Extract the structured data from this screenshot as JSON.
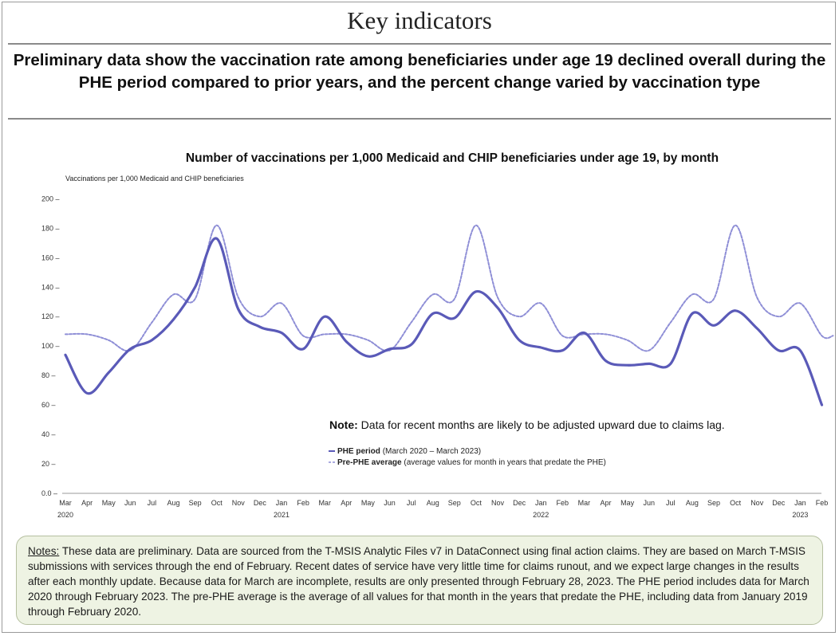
{
  "slide": {
    "title": "Key indicators",
    "headline": "Preliminary data show the vaccination rate among beneficiaries under age 19 declined overall during the PHE period compared to prior years, and the percent change varied by vaccination type"
  },
  "chart_data": {
    "type": "line",
    "title": "Number of vaccinations per 1,000 Medicaid and CHIP beneficiaries under age 19, by month",
    "ylabel": "Vaccinations per 1,000 Medicaid and CHIP beneficiaries",
    "xlabel": "",
    "ylim": [
      0,
      200
    ],
    "yticks": [
      0,
      20,
      40,
      60,
      80,
      100,
      120,
      140,
      160,
      180,
      200
    ],
    "ytick_labels": [
      "0.0",
      "20",
      "40",
      "60",
      "80",
      "100",
      "120",
      "140",
      "160",
      "180",
      "200"
    ],
    "grid": false,
    "legend_placement": "lower-right",
    "categories": [
      "Mar",
      "Apr",
      "May",
      "Jun",
      "Jul",
      "Aug",
      "Sep",
      "Oct",
      "Nov",
      "Dec",
      "Jan",
      "Feb",
      "Mar",
      "Apr",
      "May",
      "Jun",
      "Jul",
      "Aug",
      "Sep",
      "Oct",
      "Nov",
      "Dec",
      "Jan",
      "Feb",
      "Mar",
      "Apr",
      "May",
      "Jun",
      "Jul",
      "Aug",
      "Sep",
      "Oct",
      "Nov",
      "Dec",
      "Jan",
      "Feb"
    ],
    "year_labels": [
      {
        "index": 0,
        "label": "2020"
      },
      {
        "index": 10,
        "label": "2021"
      },
      {
        "index": 22,
        "label": "2022"
      },
      {
        "index": 34,
        "label": "2023"
      }
    ],
    "series": [
      {
        "name": "PHE period",
        "name_detail": "(March 2020 – March 2023)",
        "style": "solid",
        "color": "#5a5ab8",
        "values": [
          94,
          68,
          82,
          98,
          104,
          118,
          140,
          173,
          125,
          113,
          109,
          98,
          120,
          103,
          93,
          98,
          101,
          122,
          119,
          137,
          126,
          104,
          99,
          97,
          109,
          90,
          87,
          88,
          88,
          122,
          114,
          124,
          112,
          97,
          97,
          60
        ]
      },
      {
        "name": "Pre-PHE average",
        "name_detail": "(average values for month in years that predate the PHE)",
        "style": "dashed",
        "color": "#8e8ed6",
        "values": [
          108,
          108,
          104,
          97,
          116,
          135,
          132,
          182,
          133,
          120,
          129,
          107,
          108,
          108,
          104,
          97,
          116,
          135,
          132,
          182,
          133,
          120,
          129,
          107,
          108,
          108,
          104,
          97,
          116,
          135,
          132,
          182,
          133,
          120,
          129,
          107
        ]
      }
    ],
    "annotation": {
      "bold": "Note:",
      "text": " Data for recent months are likely to be adjusted upward due to claims lag."
    }
  },
  "notes": {
    "label": "Notes:",
    "text": " These data are preliminary. Data are sourced from the T-MSIS Analytic Files v7 in DataConnect using final action claims.  They are based on March T-MSIS  submissions with services through the end of February. Recent dates of service have very little time for claims runout, and we expect large changes in the results after each monthly update. Because data for March are incomplete, results are only presented through February 28, 2023. The PHE period includes data for March 2020 through February 2023. The pre-PHE average is the average of all values for that month in the years that predate the PHE,  including data from January 2019 through February 2020."
  }
}
